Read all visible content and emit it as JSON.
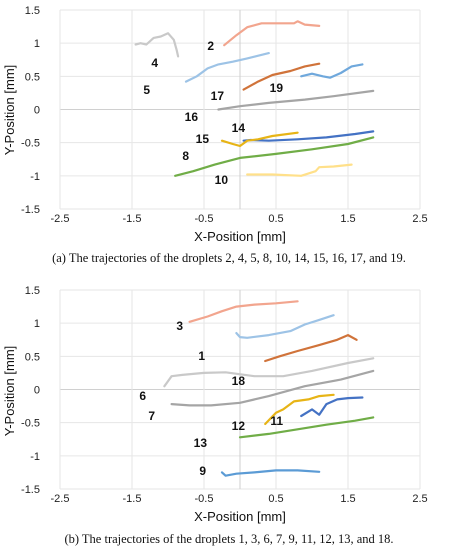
{
  "chart_data": [
    {
      "type": "line",
      "caption": "(a) The trajectories of the droplets 2, 4, 5, 8, 10, 14, 15, 16, 17, and 19.",
      "xlabel": "X-Position [mm]",
      "ylabel": "Y-Position [mm]",
      "xlim": [
        -2.5,
        2.5
      ],
      "ylim": [
        -1.5,
        1.5
      ],
      "xticks": [
        "-2.5",
        "-1.5",
        "-0.5",
        "0.5",
        "1.5",
        "2.5"
      ],
      "yticks": [
        "1.5",
        "1",
        "0.5",
        "0",
        "-0.5",
        "-1",
        "-1.5"
      ],
      "grid": true,
      "series": [
        {
          "name": "2",
          "color": "#f2a58e",
          "x": [
            -0.22,
            -0.05,
            0.1,
            0.3,
            0.55,
            0.75,
            0.8,
            0.9,
            1.1
          ],
          "y": [
            0.97,
            1.12,
            1.24,
            1.3,
            1.3,
            1.3,
            1.33,
            1.28,
            1.26
          ]
        },
        {
          "name": "4",
          "color": "#c9c9c9",
          "x": [
            -1.45,
            -1.38,
            -1.3,
            -1.2,
            -1.1,
            -1.0,
            -0.92,
            -0.88,
            -0.86
          ],
          "y": [
            0.98,
            1.0,
            0.98,
            1.08,
            1.1,
            1.15,
            1.05,
            0.9,
            0.8
          ]
        },
        {
          "name": "5",
          "color": "#9dc3e6",
          "x": [
            -0.75,
            -0.6,
            -0.45,
            -0.3,
            -0.1,
            0.1,
            0.4
          ],
          "y": [
            0.42,
            0.5,
            0.62,
            0.68,
            0.72,
            0.77,
            0.85
          ]
        },
        {
          "name": "8",
          "color": "#70ad47",
          "x": [
            -0.9,
            -0.65,
            -0.35,
            0.0,
            0.5,
            1.0,
            1.5,
            1.85
          ],
          "y": [
            -1.0,
            -0.93,
            -0.83,
            -0.73,
            -0.67,
            -0.6,
            -0.52,
            -0.42
          ]
        },
        {
          "name": "10",
          "color": "#ffe08a",
          "x": [
            0.1,
            0.45,
            0.85,
            1.05,
            1.1,
            1.3,
            1.55
          ],
          "y": [
            -0.98,
            -0.98,
            -1.0,
            -0.93,
            -0.87,
            -0.86,
            -0.83
          ]
        },
        {
          "name": "14",
          "color": "#4472c4",
          "x": [
            0.05,
            0.15,
            0.4,
            0.8,
            1.2,
            1.6,
            1.85
          ],
          "y": [
            -0.47,
            -0.46,
            -0.47,
            -0.45,
            -0.42,
            -0.37,
            -0.33
          ]
        },
        {
          "name": "15",
          "color": "#e7b416",
          "x": [
            -0.25,
            -0.1,
            0.0,
            0.1,
            0.25,
            0.45,
            0.8
          ],
          "y": [
            -0.47,
            -0.52,
            -0.55,
            -0.47,
            -0.45,
            -0.4,
            -0.35
          ]
        },
        {
          "name": "16",
          "color": "#a5a5a5",
          "x": [
            -0.3,
            0.0,
            0.4,
            0.9,
            1.3,
            1.85
          ],
          "y": [
            0.0,
            0.05,
            0.1,
            0.15,
            0.2,
            0.28
          ]
        },
        {
          "name": "17",
          "color": "#d0733a",
          "x": [
            0.05,
            0.25,
            0.45,
            0.7,
            0.9,
            1.1
          ],
          "y": [
            0.3,
            0.42,
            0.52,
            0.58,
            0.65,
            0.69
          ]
        },
        {
          "name": "19",
          "color": "#6fa8dc",
          "x": [
            0.85,
            1.0,
            1.15,
            1.25,
            1.4,
            1.55,
            1.7
          ],
          "y": [
            0.5,
            0.54,
            0.5,
            0.48,
            0.55,
            0.65,
            0.68
          ]
        }
      ]
    },
    {
      "type": "line",
      "caption": "(b) The trajectories of the droplets 1, 3, 6, 7, 9, 11, 12, 13, and 18.",
      "xlabel": "X-Position [mm]",
      "ylabel": "Y-Position [mm]",
      "xlim": [
        -2.5,
        2.5
      ],
      "ylim": [
        -1.5,
        1.5
      ],
      "xticks": [
        "-2.5",
        "-1.5",
        "-0.5",
        "0.5",
        "1.5",
        "2.5"
      ],
      "yticks": [
        "1.5",
        "1",
        "0.5",
        "0",
        "-0.5",
        "-1",
        "-1.5"
      ],
      "grid": true,
      "series": [
        {
          "name": "1",
          "color": "#9dc3e6",
          "x": [
            -0.05,
            0.0,
            0.1,
            0.4,
            0.7,
            0.9,
            1.1,
            1.3
          ],
          "y": [
            0.85,
            0.79,
            0.78,
            0.82,
            0.88,
            0.98,
            1.05,
            1.12
          ]
        },
        {
          "name": "3",
          "color": "#f2a58e",
          "x": [
            -0.7,
            -0.45,
            -0.25,
            -0.05,
            0.2,
            0.5,
            0.8
          ],
          "y": [
            1.02,
            1.1,
            1.18,
            1.25,
            1.28,
            1.3,
            1.33
          ]
        },
        {
          "name": "6",
          "color": "#c9c9c9",
          "x": [
            -1.05,
            -0.95,
            -0.8,
            -0.5,
            -0.2,
            0.2,
            0.6,
            1.0,
            1.5,
            1.85
          ],
          "y": [
            0.05,
            0.2,
            0.22,
            0.25,
            0.26,
            0.2,
            0.2,
            0.28,
            0.4,
            0.47
          ]
        },
        {
          "name": "7",
          "color": "#a5a5a5",
          "x": [
            -0.95,
            -0.7,
            -0.4,
            0.0,
            0.4,
            0.9,
            1.4,
            1.85
          ],
          "y": [
            -0.22,
            -0.24,
            -0.24,
            -0.2,
            -0.1,
            0.05,
            0.15,
            0.28
          ]
        },
        {
          "name": "9",
          "color": "#5b9bd5",
          "x": [
            -0.25,
            -0.2,
            -0.05,
            0.2,
            0.5,
            0.8,
            1.1
          ],
          "y": [
            -1.25,
            -1.3,
            -1.27,
            -1.25,
            -1.22,
            -1.22,
            -1.24
          ]
        },
        {
          "name": "11",
          "color": "#4472c4",
          "x": [
            0.85,
            1.0,
            1.1,
            1.2,
            1.35,
            1.5,
            1.7
          ],
          "y": [
            -0.4,
            -0.3,
            -0.38,
            -0.22,
            -0.15,
            -0.13,
            -0.12
          ]
        },
        {
          "name": "12",
          "color": "#e7b416",
          "x": [
            0.35,
            0.5,
            0.6,
            0.75,
            0.95,
            1.1,
            1.3
          ],
          "y": [
            -0.52,
            -0.35,
            -0.3,
            -0.18,
            -0.15,
            -0.1,
            -0.08
          ]
        },
        {
          "name": "13",
          "color": "#70ad47",
          "x": [
            0.0,
            0.4,
            0.8,
            1.2,
            1.6,
            1.85
          ],
          "y": [
            -0.72,
            -0.67,
            -0.6,
            -0.53,
            -0.47,
            -0.42
          ]
        },
        {
          "name": "18",
          "color": "#d0733a",
          "x": [
            0.35,
            0.55,
            0.8,
            1.1,
            1.35,
            1.5,
            1.62
          ],
          "y": [
            0.43,
            0.5,
            0.58,
            0.67,
            0.75,
            0.82,
            0.75
          ]
        }
      ]
    }
  ]
}
